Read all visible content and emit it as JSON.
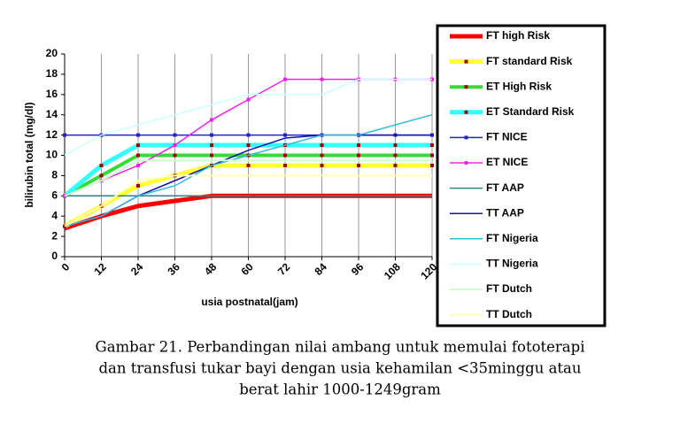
{
  "chart_data": {
    "type": "line",
    "x_label": "usia postnatal(jam)",
    "y_label": "bilirubin total (mg/dl)",
    "x": [
      0,
      12,
      24,
      36,
      48,
      60,
      72,
      84,
      96,
      108,
      120
    ],
    "xlim": [
      0,
      120
    ],
    "xticks": [
      0,
      12,
      24,
      36,
      48,
      60,
      72,
      84,
      96,
      108,
      120
    ],
    "ylim": [
      0,
      20
    ],
    "yticks": [
      0,
      2,
      4,
      6,
      8,
      10,
      12,
      14,
      16,
      18,
      20
    ],
    "grid": "x",
    "series": [
      {
        "name": "FT high Risk",
        "color": "#ff0000",
        "width": 5,
        "marker": "none",
        "values": [
          2.8,
          4,
          5,
          5.5,
          6,
          6,
          6,
          6,
          6,
          6,
          6
        ]
      },
      {
        "name": "FT standard Risk",
        "color": "#ffff33",
        "width": 5,
        "marker": "square",
        "marker_color": "#a00000",
        "values": [
          3,
          5,
          7,
          8,
          9,
          9,
          9,
          9,
          9,
          9,
          9
        ]
      },
      {
        "name": "ET High Risk",
        "color": "#33dd33",
        "width": 4,
        "marker": "square",
        "marker_color": "#a00000",
        "values": [
          6,
          8,
          10,
          10,
          10,
          10,
          10,
          10,
          10,
          10,
          10
        ]
      },
      {
        "name": "ET Standard Risk",
        "color": "#33ffff",
        "width": 5,
        "marker": "square",
        "marker_color": "#a00000",
        "values": [
          6,
          9,
          11,
          11,
          11,
          11,
          11,
          11,
          11,
          11,
          11
        ]
      },
      {
        "name": "FT NICE",
        "color": "#2222cc",
        "width": 1.5,
        "marker": "square",
        "marker_color": "#2222cc",
        "values": [
          12,
          12,
          12,
          12,
          12,
          12,
          12,
          12,
          12,
          12,
          12
        ]
      },
      {
        "name": "ET NICE",
        "color": "#ee22ee",
        "width": 1.5,
        "marker": "square",
        "marker_color": "#ee22ee",
        "values": [
          6,
          7.5,
          9,
          11,
          13.5,
          15.5,
          17.5,
          17.5,
          17.5,
          17.5,
          17.5
        ]
      },
      {
        "name": "FT AAP",
        "color": "#228888",
        "width": 1.5,
        "marker": "none",
        "values": [
          6,
          6,
          6,
          6,
          6,
          6,
          6,
          6,
          6,
          6,
          6
        ]
      },
      {
        "name": "TT AAP",
        "color": "#1111aa",
        "width": 1.5,
        "marker": "none",
        "values": [
          3,
          4,
          6,
          7.5,
          9,
          10.5,
          11.7,
          12,
          12,
          12,
          12
        ]
      },
      {
        "name": "FT Nigeria",
        "color": "#33bbdd",
        "width": 1.5,
        "marker": "none",
        "values": [
          3,
          4,
          6,
          7,
          9,
          10,
          11,
          12,
          12,
          13,
          14
        ]
      },
      {
        "name": "TT Nigeria",
        "color": "#ccffff",
        "width": 1.5,
        "marker": "none",
        "values": [
          10,
          12,
          13,
          14,
          15,
          16,
          16,
          16,
          17.5,
          17.5,
          17.5
        ]
      },
      {
        "name": "FT Dutch",
        "color": "#ccffcc",
        "width": 2,
        "marker": "none",
        "values": [
          6,
          7.5,
          9.5,
          9.5,
          9.5,
          9.5,
          9.5,
          9.5,
          9.5,
          9.5,
          9.5
        ]
      },
      {
        "name": "TT Dutch",
        "color": "#ffffbb",
        "width": 2,
        "marker": "none",
        "values": [
          3,
          5,
          7.5,
          8,
          8,
          8,
          8,
          8,
          8,
          8,
          8
        ]
      }
    ],
    "caption": [
      "Gambar 21. Perbandingan nilai ambang untuk memulai fototerapi",
      "dan transfusi tukar bayi dengan usia kehamilan <35minggu atau",
      "berat lahir 1000-1249gram"
    ]
  }
}
